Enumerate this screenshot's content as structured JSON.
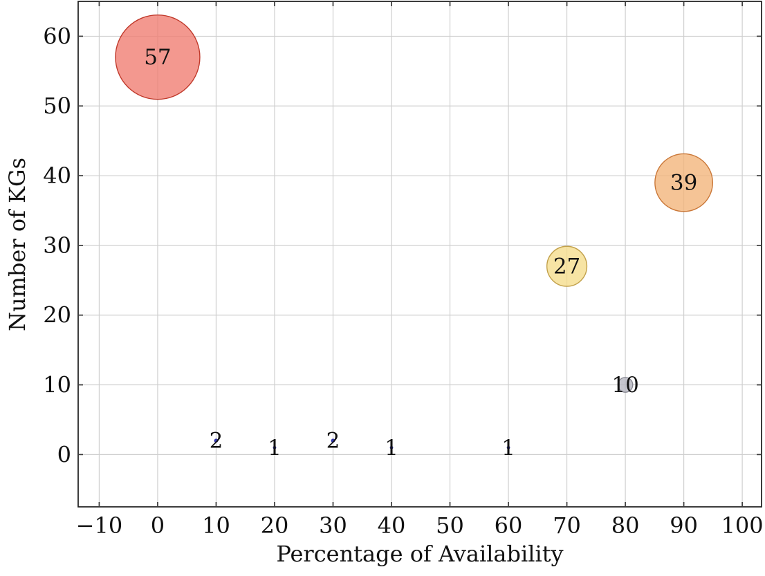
{
  "chart_data": {
    "type": "scatter",
    "variant": "bubble",
    "title": "",
    "xlabel": "Percentage of Availability",
    "ylabel": "Number of KGs",
    "xlim": [
      -13.6,
      103.3
    ],
    "ylim": [
      -7.5,
      65
    ],
    "grid": true,
    "legend_position": "none",
    "xticks": [
      {
        "v": -10,
        "label": "−10"
      },
      {
        "v": 0,
        "label": "0"
      },
      {
        "v": 10,
        "label": "10"
      },
      {
        "v": 20,
        "label": "20"
      },
      {
        "v": 30,
        "label": "30"
      },
      {
        "v": 40,
        "label": "40"
      },
      {
        "v": 50,
        "label": "50"
      },
      {
        "v": 60,
        "label": "60"
      },
      {
        "v": 70,
        "label": "70"
      },
      {
        "v": 80,
        "label": "80"
      },
      {
        "v": 90,
        "label": "90"
      },
      {
        "v": 100,
        "label": "100"
      }
    ],
    "yticks": [
      {
        "v": 0,
        "label": "0"
      },
      {
        "v": 10,
        "label": "10"
      },
      {
        "v": 20,
        "label": "20"
      },
      {
        "v": 30,
        "label": "30"
      },
      {
        "v": 40,
        "label": "40"
      },
      {
        "v": 50,
        "label": "50"
      },
      {
        "v": 60,
        "label": "60"
      }
    ],
    "points": [
      {
        "x": 0,
        "y": 57,
        "value": 57,
        "label": "57",
        "fill": "#EF7B70",
        "stroke": "#C0392B"
      },
      {
        "x": 90,
        "y": 39,
        "value": 39,
        "label": "39",
        "fill": "#F2B379",
        "stroke": "#CA7839"
      },
      {
        "x": 70,
        "y": 27,
        "value": 27,
        "label": "27",
        "fill": "#F5DD8A",
        "stroke": "#C2A14B"
      },
      {
        "x": 80,
        "y": 10,
        "value": 10,
        "label": "10",
        "fill": "#B5B5BF",
        "stroke": "#8A8A94"
      },
      {
        "x": 10,
        "y": 2,
        "value": 2,
        "label": "2",
        "fill": "#3B3FC0",
        "stroke": "#2B2FA0"
      },
      {
        "x": 20,
        "y": 1,
        "value": 1,
        "label": "1",
        "fill": "#3B3FC0",
        "stroke": "#2B2FA0"
      },
      {
        "x": 30,
        "y": 2,
        "value": 2,
        "label": "2",
        "fill": "#3B3FC0",
        "stroke": "#2B2FA0"
      },
      {
        "x": 40,
        "y": 1,
        "value": 1,
        "label": "1",
        "fill": "#3B3FC0",
        "stroke": "#2B2FA0"
      },
      {
        "x": 60,
        "y": 1,
        "value": 1,
        "label": "1",
        "fill": "#3B3FC0",
        "stroke": "#2B2FA0"
      }
    ],
    "colors": {
      "grid": "#CFCFCF",
      "frame": "#1A1A1A",
      "tick": "#3A3A3A",
      "text": "#000000",
      "background": "#FFFFFF"
    }
  }
}
